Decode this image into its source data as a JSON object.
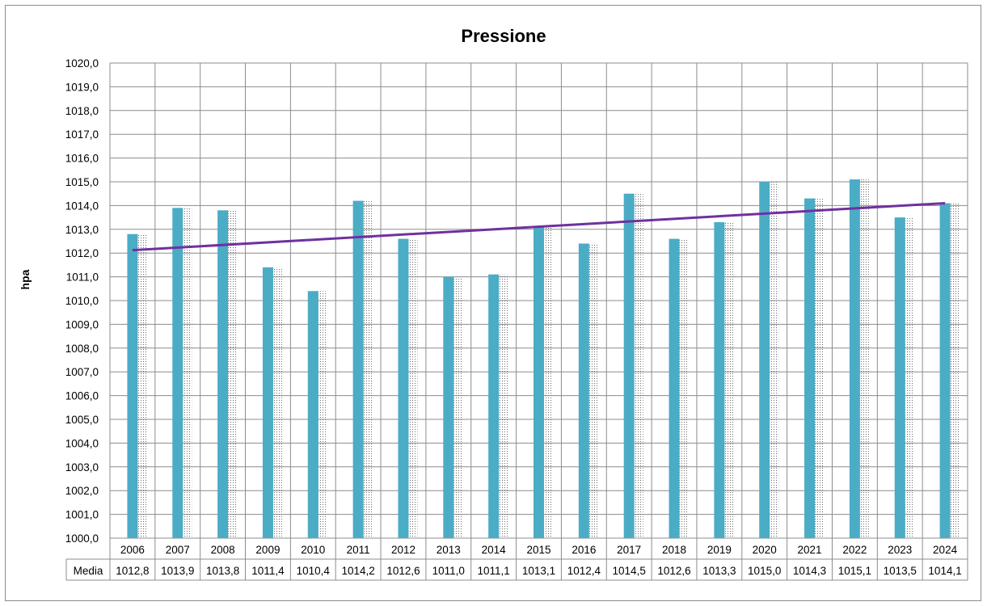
{
  "chart_data": {
    "type": "bar",
    "title": "Pressione",
    "ylabel": "hpa",
    "xlabel": "",
    "categories": [
      "2006",
      "2007",
      "2008",
      "2009",
      "2010",
      "2011",
      "2012",
      "2013",
      "2014",
      "2015",
      "2016",
      "2017",
      "2018",
      "2019",
      "2020",
      "2021",
      "2022",
      "2023",
      "2024"
    ],
    "series": [
      {
        "name": "Media",
        "values": [
          1012.8,
          1013.9,
          1013.8,
          1011.4,
          1010.4,
          1014.2,
          1012.6,
          1011.0,
          1011.1,
          1013.1,
          1012.4,
          1014.5,
          1012.6,
          1013.3,
          1015.0,
          1014.3,
          1015.1,
          1013.5,
          1014.1
        ]
      }
    ],
    "trendline": {
      "type": "linear",
      "color": "#7030a0"
    },
    "ylim": [
      1000,
      1020
    ],
    "ytick_step": 1,
    "ytick_labels": [
      "1000,0",
      "1001,0",
      "1002,0",
      "1003,0",
      "1004,0",
      "1005,0",
      "1006,0",
      "1007,0",
      "1008,0",
      "1009,0",
      "1010,0",
      "1011,0",
      "1012,0",
      "1013,0",
      "1014,0",
      "1015,0",
      "1016,0",
      "1017,0",
      "1018,0",
      "1019,0",
      "1020,0"
    ],
    "data_table": {
      "row_label": "Media",
      "values": [
        "1012,8",
        "1013,9",
        "1013,8",
        "1011,4",
        "1010,4",
        "1014,2",
        "1012,6",
        "1011,0",
        "1011,1",
        "1013,1",
        "1012,4",
        "1014,5",
        "1012,6",
        "1013,3",
        "1015,0",
        "1014,3",
        "1015,1",
        "1013,5",
        "1014,1"
      ]
    },
    "grid": true,
    "legend": "none",
    "colors": {
      "bar": "#4bacc6",
      "grid": "#8c8c8c",
      "trend": "#7030a0"
    }
  }
}
